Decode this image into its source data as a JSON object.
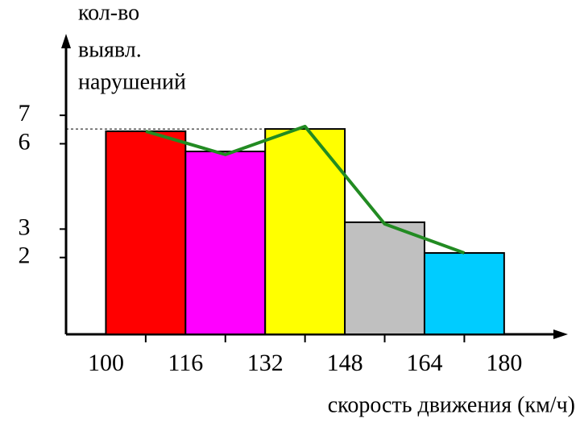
{
  "chart_data": {
    "type": "histogram",
    "y_label": [
      "кол-во",
      "выявл.",
      "нарушений"
    ],
    "x_label": "скорость движения (км/ч)",
    "bins": [
      100,
      116,
      132,
      148,
      164,
      180
    ],
    "values": [
      6.44,
      5.73,
      6.52,
      3.24,
      2.16
    ],
    "colors": [
      "#ff0000",
      "#ff00ff",
      "#ffff00",
      "#c0c0c0",
      "#00ccff"
    ],
    "xlim": [
      92,
      192
    ],
    "xticks": [
      100,
      116,
      132,
      148,
      164,
      180
    ],
    "ylim": [
      -0.7,
      9.78
    ],
    "yticks": [
      2,
      3,
      6,
      7
    ],
    "series": [
      {
        "type": "line",
        "color": "#228b22",
        "x": [
          108,
          124,
          140,
          156,
          172
        ],
        "values": [
          6.44,
          5.62,
          6.61,
          3.18,
          2.16
        ]
      }
    ]
  }
}
